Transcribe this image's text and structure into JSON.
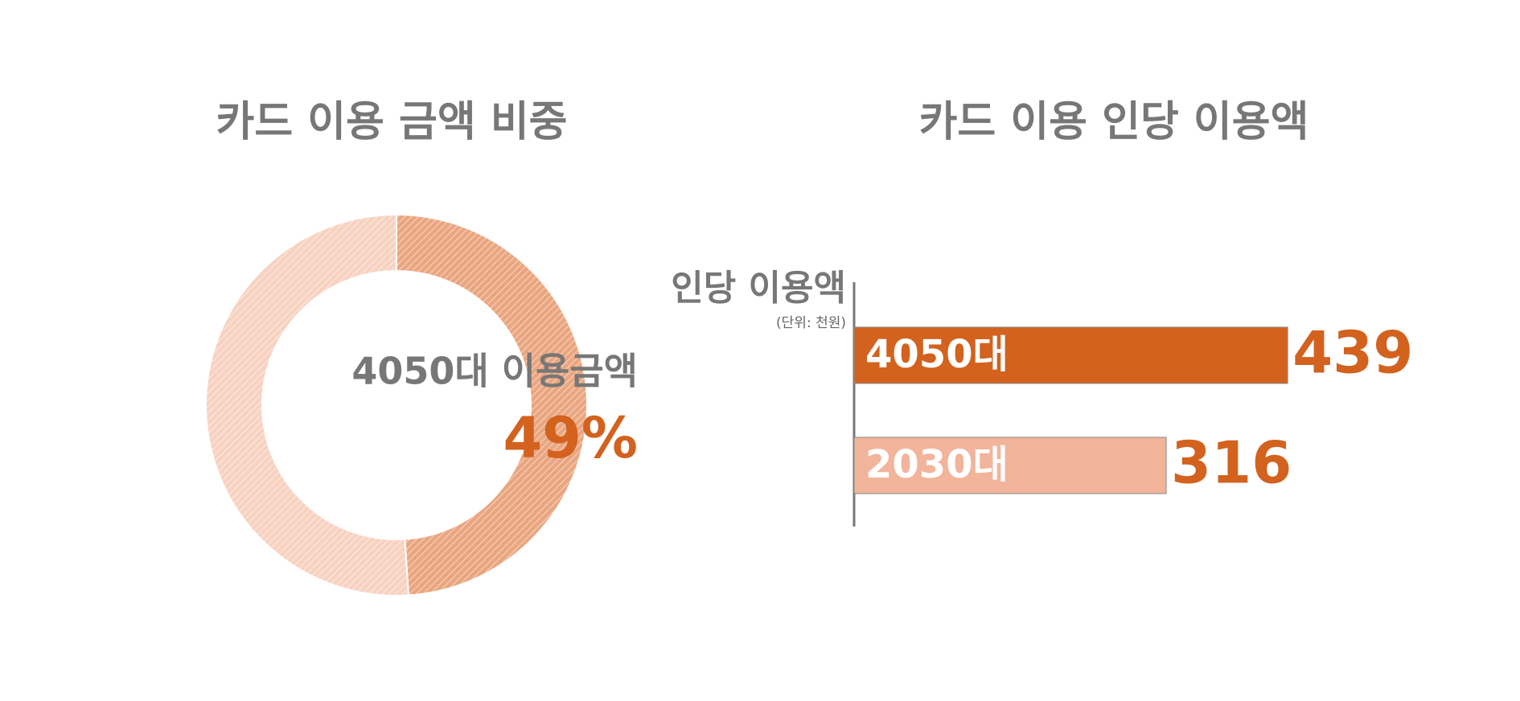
{
  "chart_data": [
    {
      "type": "pie",
      "title": "카드 이용 금액 비중",
      "categories": [
        "4050대 이용금액",
        null
      ],
      "values": [
        49,
        51
      ],
      "value_labels": [
        "49%",
        null
      ],
      "colors": [
        "#eaa680",
        "#f8d2c1"
      ],
      "label_color": "#d2621e"
    },
    {
      "type": "bar",
      "title": "카드 이용 인당 이용액",
      "axis_label": "인당 이용액",
      "unit": "(단위: 천원)",
      "categories": [
        "4050대",
        "2030대"
      ],
      "values": [
        439,
        316
      ],
      "colors": [
        "#d2621e",
        "#f2b49b"
      ],
      "label_color": "#d2621e",
      "xlim": [
        0,
        500
      ]
    }
  ]
}
